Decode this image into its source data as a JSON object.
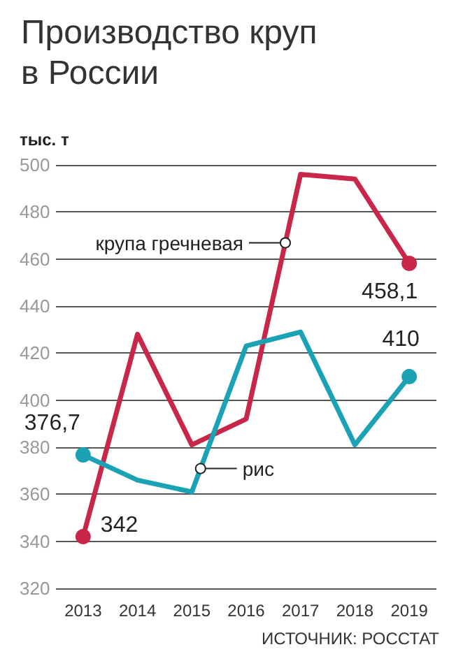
{
  "chart_data": {
    "type": "line",
    "title": "Производство круп в России",
    "ylabel": "тыс. т",
    "annotations": [
      "ИСТОЧНИК: РОССТАТ"
    ],
    "categories": [
      "2013",
      "2014",
      "2015",
      "2016",
      "2017",
      "2018",
      "2019"
    ],
    "series": [
      {
        "name": "крупа гречневая",
        "color": "#c8274a",
        "values": [
          342,
          428,
          381,
          392,
          496,
          494,
          458.1
        ],
        "value_labels": [
          "342",
          null,
          null,
          null,
          null,
          null,
          "458,1"
        ]
      },
      {
        "name": "рис",
        "color": "#1ba3b5",
        "values": [
          376.7,
          366,
          361,
          423,
          429,
          381,
          410
        ],
        "value_labels": [
          "376,7",
          null,
          null,
          null,
          null,
          null,
          "410"
        ]
      }
    ],
    "ylim": [
      320,
      500
    ],
    "yticks": [
      320,
      340,
      360,
      380,
      400,
      420,
      440,
      460,
      480,
      500
    ],
    "grid": "y",
    "legend": false,
    "line_style": "solid"
  }
}
